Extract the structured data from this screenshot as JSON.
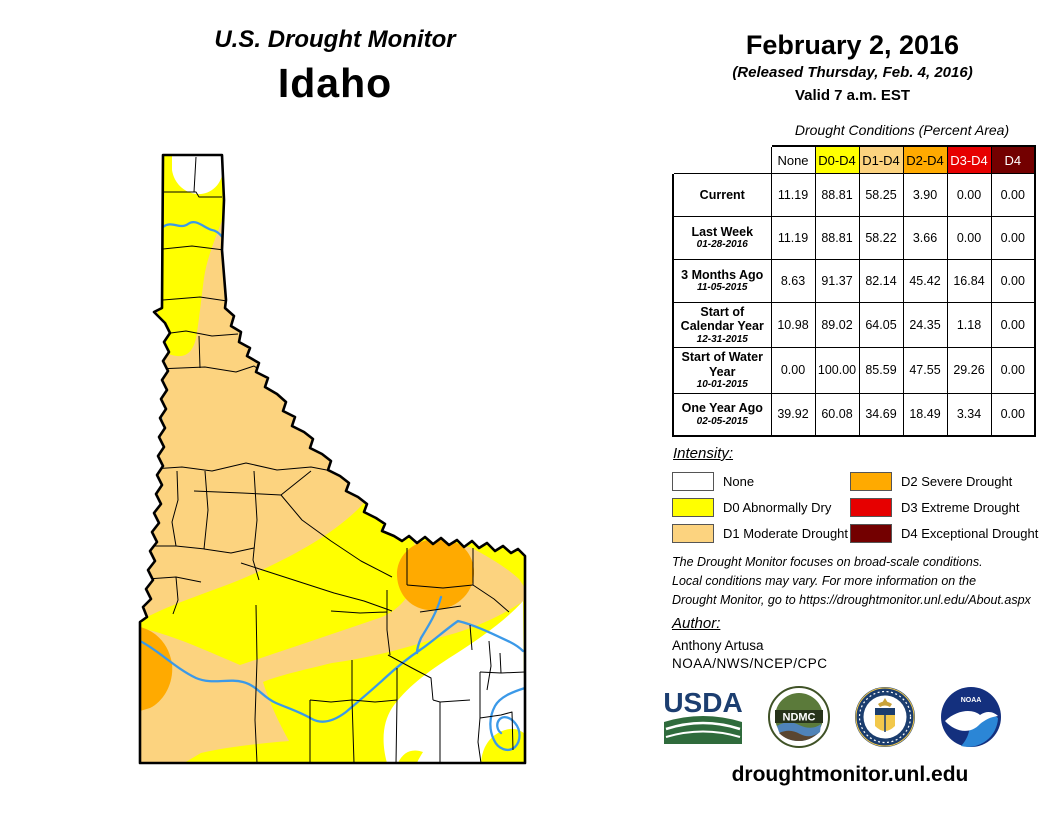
{
  "header": {
    "title": "U.S. Drought Monitor",
    "state": "Idaho"
  },
  "date_block": {
    "date": "February 2, 2016",
    "released": "(Released Thursday, Feb. 4, 2016)",
    "valid": "Valid 7 a.m. EST"
  },
  "table": {
    "caption": "Drought Conditions (Percent Area)",
    "columns": [
      "None",
      "D0-D4",
      "D1-D4",
      "D2-D4",
      "D3-D4",
      "D4"
    ],
    "column_colors": [
      "#FFFFFF",
      "#FFFF00",
      "#FCD37F",
      "#FFAA00",
      "#E60000",
      "#730000"
    ],
    "column_text_colors": [
      "#000000",
      "#000000",
      "#000000",
      "#000000",
      "#FFFFFF",
      "#FFFFFF"
    ],
    "rows": [
      {
        "label": "Current",
        "date": "",
        "values": [
          "11.19",
          "88.81",
          "58.25",
          "3.90",
          "0.00",
          "0.00"
        ]
      },
      {
        "label": "Last Week",
        "date": "01-28-2016",
        "values": [
          "11.19",
          "88.81",
          "58.22",
          "3.66",
          "0.00",
          "0.00"
        ]
      },
      {
        "label": "3 Months Ago",
        "date": "11-05-2015",
        "values": [
          "8.63",
          "91.37",
          "82.14",
          "45.42",
          "16.84",
          "0.00"
        ]
      },
      {
        "label": "Start of Calendar Year",
        "date": "12-31-2015",
        "values": [
          "10.98",
          "89.02",
          "64.05",
          "24.35",
          "1.18",
          "0.00"
        ]
      },
      {
        "label": "Start of Water Year",
        "date": "10-01-2015",
        "values": [
          "0.00",
          "100.00",
          "85.59",
          "47.55",
          "29.26",
          "0.00"
        ]
      },
      {
        "label": "One Year Ago",
        "date": "02-05-2015",
        "values": [
          "39.92",
          "60.08",
          "34.69",
          "18.49",
          "3.34",
          "0.00"
        ]
      }
    ]
  },
  "legend": {
    "title": "Intensity:",
    "items": [
      {
        "label": "None",
        "color": "#FFFFFF"
      },
      {
        "label": "D0 Abnormally Dry",
        "color": "#FFFF00"
      },
      {
        "label": "D1 Moderate Drought",
        "color": "#FCD37F"
      },
      {
        "label": "D2 Severe Drought",
        "color": "#FFAA00"
      },
      {
        "label": "D3 Extreme Drought",
        "color": "#E60000"
      },
      {
        "label": "D4 Exceptional Drought",
        "color": "#730000"
      }
    ]
  },
  "disclaimer": {
    "line1": "The Drought Monitor focuses on broad-scale conditions.",
    "line2": "Local conditions may vary. For more information on the",
    "line3": "Drought Monitor, go to https://droughtmonitor.unl.edu/About.aspx"
  },
  "author": {
    "title": "Author:",
    "name": "Anthony Artusa",
    "org": "NOAA/NWS/NCEP/CPC"
  },
  "footer": {
    "url": "droughtmonitor.unl.edu"
  },
  "logos": {
    "usda": "USDA",
    "ndmc": "NDMC",
    "doc": "Department of Commerce",
    "noaa": "NOAA"
  },
  "map": {
    "colors": {
      "none": "#FFFFFF",
      "d0": "#FFFF00",
      "d1": "#FCD37F",
      "d2": "#FFAA00",
      "d3": "#E60000",
      "d4": "#730000",
      "river": "#3B99E8",
      "outline": "#000000"
    },
    "regions": [
      "none-north-panhandle",
      "d0-panhandle",
      "d1-central",
      "d0-central-swath",
      "d2-west-border-patch",
      "d2-east-central-blob",
      "none-southeast",
      "d0-southeast-corner",
      "d0-bottom-hump"
    ]
  }
}
